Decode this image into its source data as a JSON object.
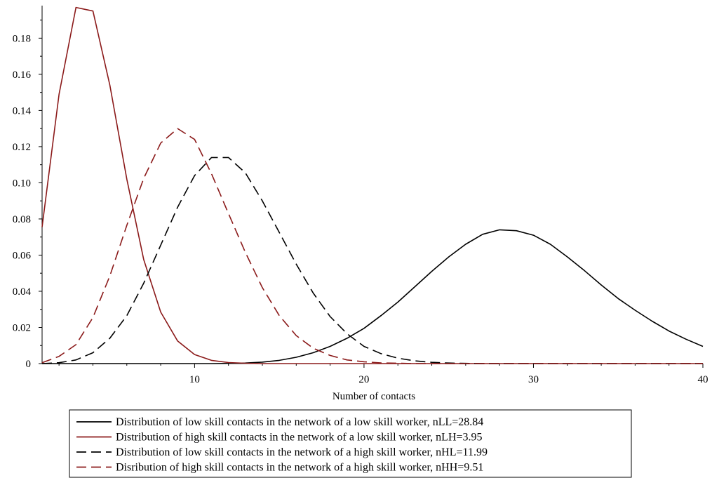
{
  "chart_data": {
    "type": "line",
    "xlabel": "Number of contacts",
    "ylabel": "",
    "xlim": [
      1,
      40
    ],
    "ylim": [
      0,
      0.198
    ],
    "x_ticks": [
      10,
      20,
      30,
      40
    ],
    "y_ticks": [
      0,
      0.02,
      0.04,
      0.06,
      0.08,
      0.1,
      0.12,
      0.14,
      0.16,
      0.18
    ],
    "y_tick_labels": [
      "0",
      "0.02",
      "0.04",
      "0.06",
      "0.08",
      "0.10",
      "0.12",
      "0.14",
      "0.16",
      "0.18"
    ],
    "grid": false,
    "legend_position": "bottom",
    "series": [
      {
        "name": "Distribution of low skill contacts in the network of a low skill worker, nLL=28.84",
        "color": "#000000",
        "dash": "solid",
        "x": [
          1,
          2,
          3,
          4,
          5,
          6,
          7,
          8,
          9,
          10,
          11,
          12,
          13,
          14,
          15,
          16,
          17,
          18,
          19,
          20,
          21,
          22,
          23,
          24,
          25,
          26,
          27,
          28,
          29,
          30,
          31,
          32,
          33,
          34,
          35,
          36,
          37,
          38,
          39,
          40
        ],
        "values": [
          0,
          0,
          0,
          0,
          0,
          0,
          0,
          0,
          0,
          0,
          0,
          0.0001,
          0.0003,
          0.0008,
          0.0018,
          0.0035,
          0.006,
          0.0095,
          0.014,
          0.0195,
          0.0265,
          0.034,
          0.0425,
          0.051,
          0.059,
          0.066,
          0.0715,
          0.074,
          0.0735,
          0.071,
          0.066,
          0.059,
          0.0515,
          0.0435,
          0.036,
          0.0295,
          0.0235,
          0.018,
          0.0135,
          0.0095
        ]
      },
      {
        "name": "Distribution of high skill contacts in the network of a low skill worker, nLH=3.95",
        "color": "#8b1a1a",
        "dash": "solid",
        "x": [
          1,
          2,
          3,
          4,
          5,
          6,
          7,
          8,
          9,
          10,
          11,
          12,
          13,
          14,
          15,
          16,
          17,
          18,
          19,
          20,
          21,
          22,
          23,
          24,
          25,
          26,
          27,
          28,
          29,
          30,
          31,
          32,
          33,
          34,
          35,
          36,
          37,
          38,
          39,
          40
        ],
        "values": [
          0.0755,
          0.149,
          0.197,
          0.195,
          0.154,
          0.102,
          0.0575,
          0.0285,
          0.0125,
          0.005,
          0.0018,
          0.0006,
          0.0002,
          0,
          0,
          0,
          0,
          0,
          0,
          0,
          0,
          0,
          0,
          0,
          0,
          0,
          0,
          0,
          0,
          0,
          0,
          0,
          0,
          0,
          0,
          0,
          0,
          0,
          0,
          0
        ]
      },
      {
        "name": "Distribution of low skill contacts in the network of a high skill worker, nHL=11.99",
        "color": "#000000",
        "dash": "dashed",
        "x": [
          1,
          2,
          3,
          4,
          5,
          6,
          7,
          8,
          9,
          10,
          11,
          12,
          13,
          14,
          15,
          16,
          17,
          18,
          19,
          20,
          21,
          22,
          23,
          24,
          25,
          26,
          27,
          28,
          29,
          30,
          31,
          32,
          33,
          34,
          35,
          36,
          37,
          38,
          39,
          40
        ],
        "values": [
          0,
          0.0005,
          0.002,
          0.006,
          0.014,
          0.0265,
          0.0445,
          0.0655,
          0.0865,
          0.104,
          0.114,
          0.114,
          0.1055,
          0.09,
          0.0725,
          0.055,
          0.039,
          0.026,
          0.0165,
          0.0095,
          0.0055,
          0.003,
          0.0015,
          0.0007,
          0.0003,
          0.0001,
          0,
          0,
          0,
          0,
          0,
          0,
          0,
          0,
          0,
          0,
          0,
          0,
          0,
          0
        ]
      },
      {
        "name": "Disribution of high skill contacts in the network of a high skill worker, nHH=9.51",
        "color": "#8b1a1a",
        "dash": "dashed",
        "x": [
          1,
          2,
          3,
          4,
          5,
          6,
          7,
          8,
          9,
          10,
          11,
          12,
          13,
          14,
          15,
          16,
          17,
          18,
          19,
          20,
          21,
          22,
          23,
          24,
          25,
          26,
          27,
          28,
          29,
          30,
          31,
          32,
          33,
          34,
          35,
          36,
          37,
          38,
          39,
          40
        ],
        "values": [
          0.0005,
          0.004,
          0.0105,
          0.0255,
          0.0485,
          0.0765,
          0.1025,
          0.122,
          0.13,
          0.124,
          0.105,
          0.083,
          0.0615,
          0.042,
          0.0265,
          0.0155,
          0.0085,
          0.0045,
          0.002,
          0.001,
          0.0004,
          0.0002,
          0,
          0,
          0,
          0,
          0,
          0,
          0,
          0,
          0,
          0,
          0,
          0,
          0,
          0,
          0,
          0,
          0,
          0
        ]
      }
    ]
  }
}
